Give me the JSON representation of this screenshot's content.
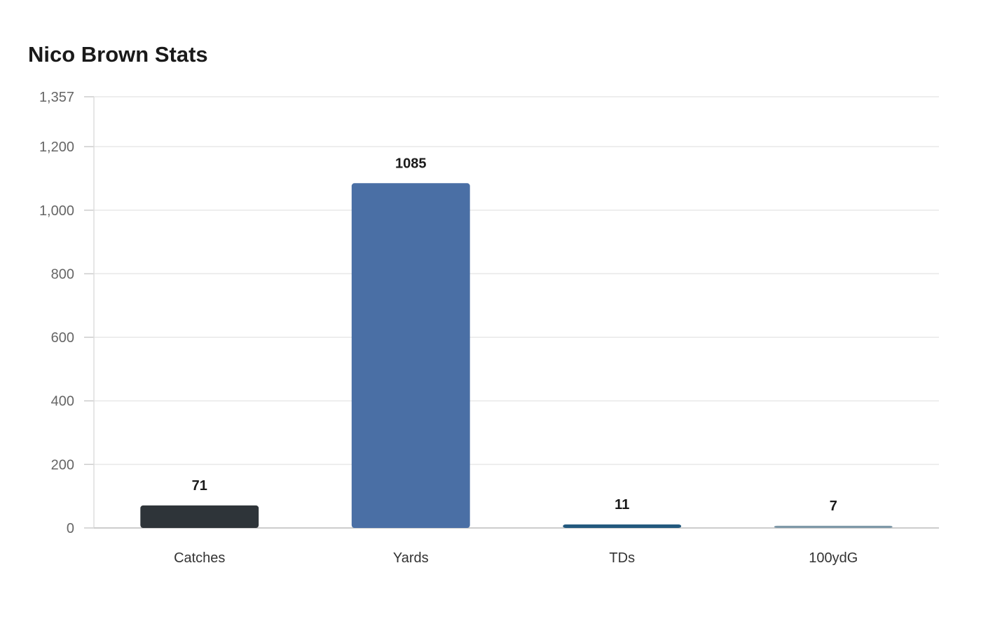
{
  "chart_data": {
    "type": "bar",
    "title": "Nico Brown Stats",
    "xlabel": "",
    "ylabel": "",
    "categories": [
      "Catches",
      "Yards",
      "TDs",
      "100ydG"
    ],
    "values": [
      71,
      1085,
      11,
      7
    ],
    "ylim": [
      0,
      1357
    ],
    "yticks": [
      0,
      200,
      400,
      600,
      800,
      1000,
      1200,
      1357
    ],
    "ytick_labels": [
      "0",
      "200",
      "400",
      "600",
      "800",
      "1,000",
      "1,200",
      "1,357"
    ],
    "bar_colors": [
      "#2e3439",
      "#4a6fa5",
      "#23597e",
      "#7f99a8"
    ],
    "grid": true,
    "legend": "none"
  }
}
